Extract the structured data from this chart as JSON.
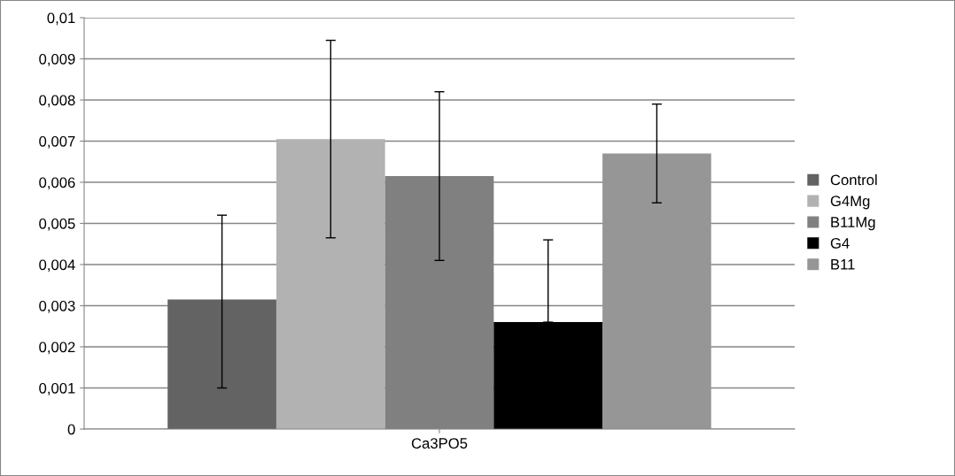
{
  "chart_data": {
    "type": "bar",
    "categories": [
      "Ca3PO5"
    ],
    "series": [
      {
        "name": "Control",
        "color": "#636363",
        "values": [
          0.00315
        ],
        "errors": [
          [
            0.001,
            0.0052
          ]
        ]
      },
      {
        "name": "G4Mg",
        "color": "#b2b2b2",
        "values": [
          0.00705
        ],
        "errors": [
          [
            0.00465,
            0.00945
          ]
        ]
      },
      {
        "name": "B11Mg",
        "color": "#808080",
        "values": [
          0.00615
        ],
        "errors": [
          [
            0.0041,
            0.0082
          ]
        ]
      },
      {
        "name": "G4",
        "color": "#000000",
        "values": [
          0.0026
        ],
        "errors": [
          [
            0.0026,
            0.0046
          ]
        ]
      },
      {
        "name": "B11",
        "color": "#969696",
        "values": [
          0.0067
        ],
        "errors": [
          [
            0.0055,
            0.0079
          ]
        ]
      }
    ],
    "ylim": [
      0,
      0.01
    ],
    "yticks": [
      0,
      {
        "value": 0.001,
        "label": "0,001"
      },
      {
        "value": 0.002,
        "label": "0,002"
      },
      {
        "value": 0.003,
        "label": "0,003"
      },
      {
        "value": 0.004,
        "label": "0,004"
      },
      {
        "value": 0.005,
        "label": "0,005"
      },
      {
        "value": 0.006,
        "label": "0,006"
      },
      {
        "value": 0.007,
        "label": "0,007"
      },
      {
        "value": 0.008,
        "label": "0,008"
      },
      {
        "value": 0.009,
        "label": "0,009"
      },
      {
        "value": 0.01,
        "label": "0,01"
      }
    ],
    "grid": "y",
    "legend": "right"
  }
}
